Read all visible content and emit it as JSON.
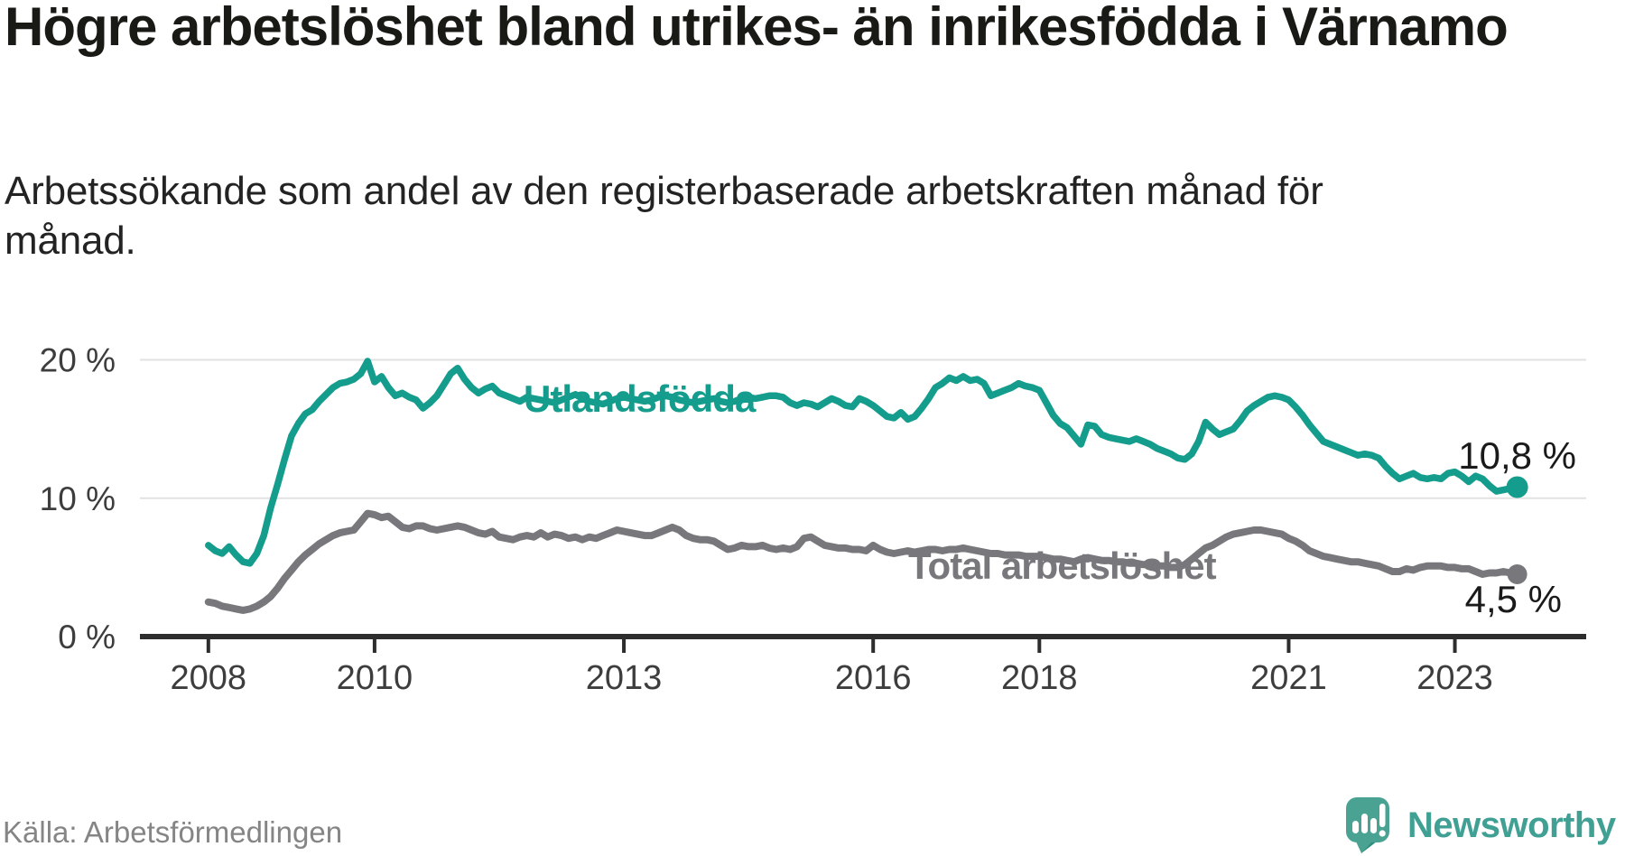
{
  "header": {
    "title": "Högre arbetslöshet bland utrikes- än inrikesfödda i Värnamo",
    "subtitle": "Arbetssökande som andel av den registerbaserade arbetskraften månad för månad."
  },
  "footer": {
    "source": "Källa: Arbetsförmedlingen",
    "brand": "Newsworthy"
  },
  "colors": {
    "foreign_born_line": "#149c8c",
    "total_line": "#78787c",
    "end_label_text": "#1a1a1a",
    "axis": "#2d2d2d",
    "gridline": "#e2e2e2",
    "brand_teal": "#3fa093"
  },
  "chart_data": {
    "type": "line",
    "title": "Högre arbetslöshet bland utrikes- än inrikesfödda i Värnamo",
    "subtitle": "Arbetssökande som andel av den registerbaserade arbetskraften månad för månad.",
    "unit": "%",
    "x_start": {
      "year": 2008,
      "month": 1
    },
    "x_end": {
      "year": 2023,
      "month": 10
    },
    "frequency": "monthly",
    "grid": "horizontal",
    "legend_position": "inline-labels",
    "ylim": [
      0,
      21.5
    ],
    "y_ticks": [
      {
        "label": "20 %",
        "value": 20
      },
      {
        "label": "10 %",
        "value": 10
      },
      {
        "label": "0 %",
        "value": 0
      }
    ],
    "x_ticks": [
      {
        "label": "2008",
        "year": 2008
      },
      {
        "label": "2010",
        "year": 2010
      },
      {
        "label": "2013",
        "year": 2013
      },
      {
        "label": "2016",
        "year": 2016
      },
      {
        "label": "2018",
        "year": 2018
      },
      {
        "label": "2021",
        "year": 2021
      },
      {
        "label": "2023",
        "year": 2023
      }
    ],
    "series": [
      {
        "name": "Utlandsfödda",
        "color": "#149c8c",
        "end_label": "10,8 %",
        "end_value": 10.8,
        "values": [
          6.6,
          6.2,
          6.0,
          6.5,
          5.9,
          5.4,
          5.3,
          6.0,
          7.3,
          9.3,
          11.0,
          12.8,
          14.5,
          15.4,
          16.1,
          16.4,
          17.0,
          17.5,
          18.0,
          18.3,
          18.4,
          18.6,
          19.0,
          19.9,
          18.4,
          18.8,
          18.0,
          17.4,
          17.6,
          17.3,
          17.1,
          16.5,
          16.9,
          17.4,
          18.2,
          19.0,
          19.4,
          18.6,
          18.0,
          17.6,
          17.9,
          18.1,
          17.6,
          17.4,
          17.2,
          17.0,
          17.3,
          17.2,
          17.1,
          17.0,
          16.9,
          17.1,
          17.3,
          17.5,
          17.2,
          17.0,
          16.9,
          16.8,
          17.0,
          17.2,
          17.3,
          17.2,
          17.1,
          17.0,
          17.1,
          17.3,
          17.4,
          17.3,
          17.1,
          17.0,
          16.9,
          17.0,
          17.1,
          17.2,
          17.0,
          16.9,
          17.0,
          17.2,
          17.3,
          17.2,
          17.3,
          17.4,
          17.4,
          17.3,
          16.9,
          16.7,
          16.9,
          16.8,
          16.6,
          16.9,
          17.2,
          17.0,
          16.7,
          16.6,
          17.2,
          17.0,
          16.7,
          16.3,
          15.9,
          15.8,
          16.2,
          15.7,
          15.9,
          16.5,
          17.2,
          18.0,
          18.3,
          18.7,
          18.5,
          18.8,
          18.5,
          18.6,
          18.3,
          17.4,
          17.6,
          17.8,
          18.0,
          18.3,
          18.1,
          18.0,
          17.8,
          16.9,
          16.0,
          15.4,
          15.1,
          14.5,
          13.9,
          15.3,
          15.2,
          14.6,
          14.4,
          14.3,
          14.2,
          14.1,
          14.3,
          14.1,
          13.9,
          13.6,
          13.4,
          13.2,
          12.9,
          12.8,
          13.2,
          14.1,
          15.5,
          15.0,
          14.6,
          14.8,
          15.0,
          15.6,
          16.3,
          16.7,
          17.0,
          17.3,
          17.4,
          17.3,
          17.1,
          16.6,
          16.0,
          15.3,
          14.7,
          14.1,
          13.9,
          13.7,
          13.5,
          13.3,
          13.1,
          13.2,
          13.1,
          12.9,
          12.3,
          11.8,
          11.4,
          11.6,
          11.8,
          11.5,
          11.4,
          11.5,
          11.4,
          11.8,
          11.9,
          11.6,
          11.2,
          11.6,
          11.4,
          10.9,
          10.5,
          10.6,
          10.7,
          10.8
        ]
      },
      {
        "name": "Total arbetslöshet",
        "color": "#78787c",
        "end_label": "4,5 %",
        "end_value": 4.5,
        "values": [
          2.5,
          2.4,
          2.2,
          2.1,
          2.0,
          1.9,
          2.0,
          2.2,
          2.5,
          2.9,
          3.5,
          4.2,
          4.8,
          5.4,
          5.9,
          6.3,
          6.7,
          7.0,
          7.3,
          7.5,
          7.6,
          7.7,
          8.3,
          8.9,
          8.8,
          8.6,
          8.7,
          8.3,
          7.9,
          7.8,
          8.0,
          8.0,
          7.8,
          7.7,
          7.8,
          7.9,
          8.0,
          7.9,
          7.7,
          7.5,
          7.4,
          7.6,
          7.2,
          7.1,
          7.0,
          7.2,
          7.3,
          7.2,
          7.5,
          7.2,
          7.4,
          7.3,
          7.1,
          7.2,
          7.0,
          7.2,
          7.1,
          7.3,
          7.5,
          7.7,
          7.6,
          7.5,
          7.4,
          7.3,
          7.3,
          7.5,
          7.7,
          7.9,
          7.7,
          7.3,
          7.1,
          7.0,
          7.0,
          6.9,
          6.6,
          6.3,
          6.4,
          6.6,
          6.5,
          6.5,
          6.6,
          6.4,
          6.3,
          6.4,
          6.3,
          6.5,
          7.1,
          7.2,
          6.9,
          6.6,
          6.5,
          6.4,
          6.4,
          6.3,
          6.3,
          6.2,
          6.6,
          6.3,
          6.1,
          6.0,
          6.1,
          6.2,
          6.1,
          6.2,
          6.3,
          6.3,
          6.2,
          6.3,
          6.3,
          6.4,
          6.3,
          6.2,
          6.1,
          6.0,
          6.0,
          5.9,
          5.9,
          5.9,
          5.8,
          5.8,
          5.8,
          5.7,
          5.6,
          5.6,
          5.5,
          5.4,
          5.6,
          5.7,
          5.6,
          5.5,
          5.5,
          5.4,
          5.4,
          5.3,
          5.3,
          5.2,
          5.2,
          5.1,
          5.1,
          5.0,
          5.0,
          5.2,
          5.6,
          6.0,
          6.4,
          6.6,
          6.9,
          7.2,
          7.4,
          7.5,
          7.6,
          7.7,
          7.7,
          7.6,
          7.5,
          7.4,
          7.1,
          6.9,
          6.6,
          6.2,
          6.0,
          5.8,
          5.7,
          5.6,
          5.5,
          5.4,
          5.4,
          5.3,
          5.2,
          5.1,
          4.9,
          4.7,
          4.7,
          4.9,
          4.8,
          5.0,
          5.1,
          5.1,
          5.1,
          5.0,
          5.0,
          4.9,
          4.9,
          4.7,
          4.5,
          4.6,
          4.6,
          4.7,
          4.6,
          4.5
        ]
      }
    ]
  }
}
